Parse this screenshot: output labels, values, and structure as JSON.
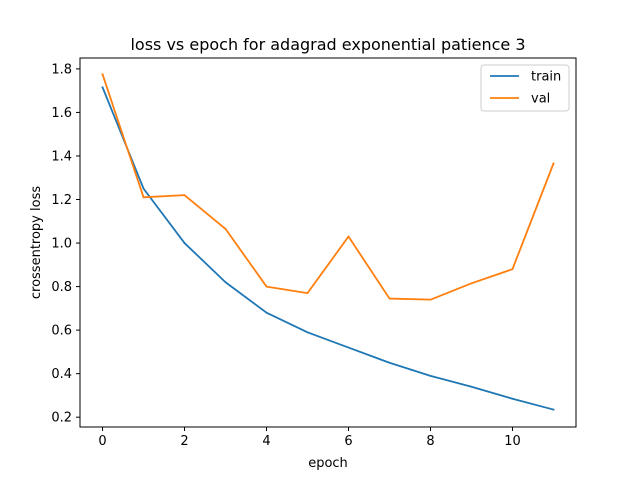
{
  "chart_data": {
    "type": "line",
    "title": "loss vs epoch for adagrad exponential patience 3",
    "xlabel": "epoch",
    "ylabel": "crossentropy loss",
    "x": [
      0,
      1,
      2,
      3,
      4,
      5,
      6,
      7,
      8,
      9,
      10,
      11
    ],
    "xlim": [
      -0.55,
      11.55
    ],
    "ylim": [
      0.155,
      1.85
    ],
    "xticks": [
      0,
      2,
      4,
      6,
      8,
      10
    ],
    "yticks": [
      0.2,
      0.4,
      0.6,
      0.8,
      1.0,
      1.2,
      1.4,
      1.6,
      1.8
    ],
    "xtick_labels": [
      "0",
      "2",
      "4",
      "6",
      "8",
      "10"
    ],
    "ytick_labels": [
      "0.2",
      "0.4",
      "0.6",
      "0.8",
      "1.0",
      "1.2",
      "1.4",
      "1.6",
      "1.8"
    ],
    "grid": false,
    "legend_position": "top-right",
    "series": [
      {
        "name": "train",
        "color": "#1f77b4",
        "values": [
          1.715,
          1.25,
          1.0,
          0.82,
          0.68,
          0.59,
          0.52,
          0.45,
          0.39,
          0.34,
          0.285,
          0.235
        ]
      },
      {
        "name": "val",
        "color": "#ff7f0e",
        "values": [
          1.775,
          1.21,
          1.22,
          1.065,
          0.8,
          0.77,
          1.03,
          0.745,
          0.74,
          0.815,
          0.88,
          1.365
        ]
      }
    ]
  }
}
